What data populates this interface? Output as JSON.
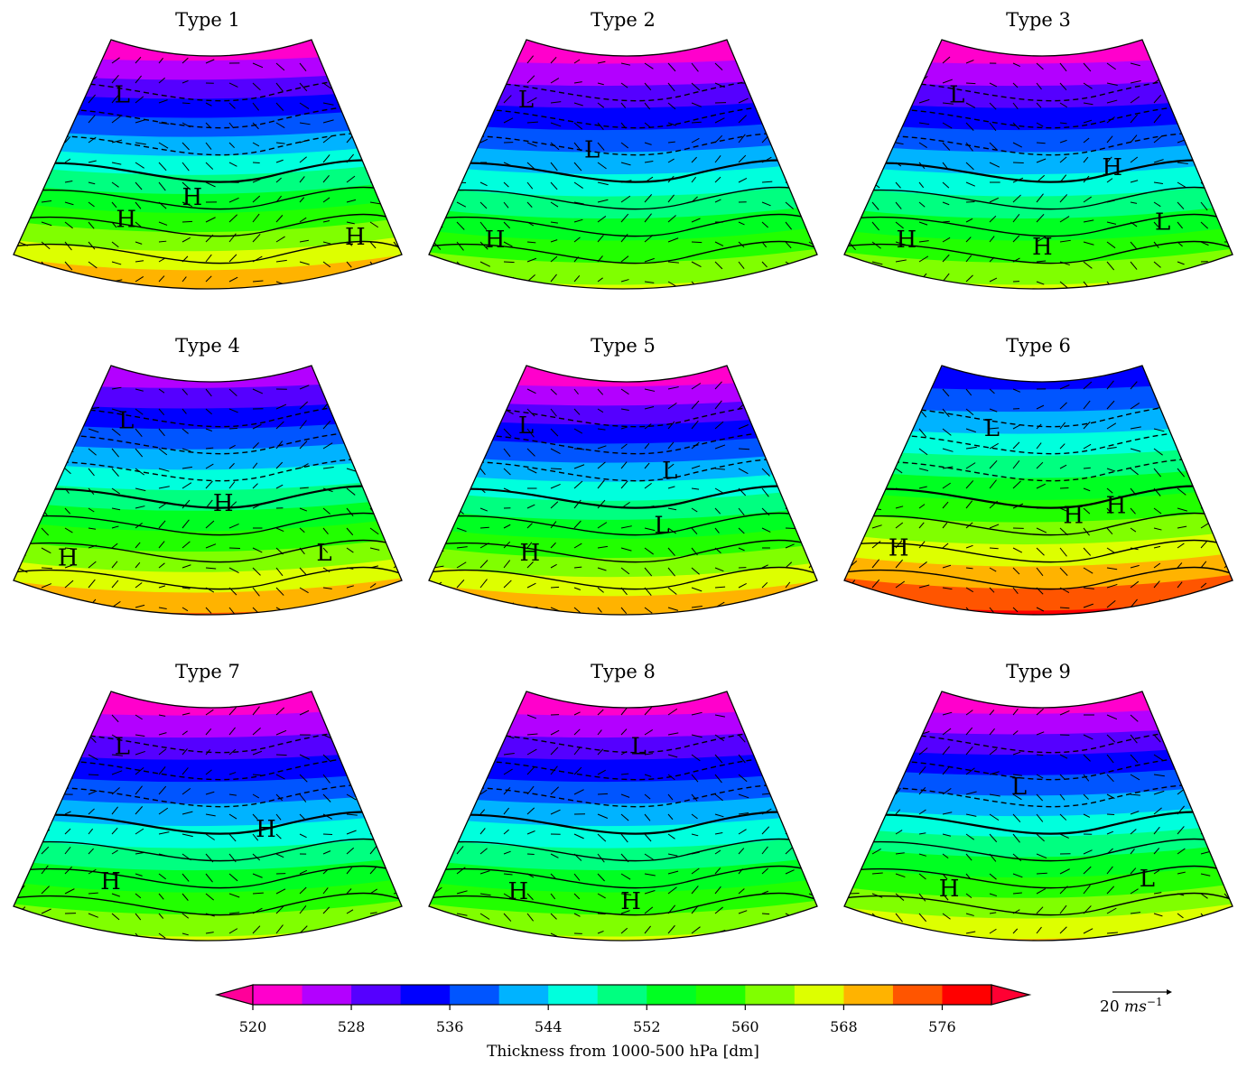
{
  "figure": {
    "colorbar": {
      "label": "Thickness from 1000-500 hPa [dm]",
      "ticks": [
        "520",
        "528",
        "536",
        "544",
        "552",
        "560",
        "568",
        "576"
      ],
      "levels": [
        520,
        524,
        528,
        532,
        536,
        540,
        544,
        548,
        552,
        556,
        560,
        564,
        568,
        572,
        576,
        580
      ],
      "colors": [
        "#ff00cc",
        "#b300ff",
        "#5500ff",
        "#0000ff",
        "#0055ff",
        "#00b3ff",
        "#00ffdd",
        "#00ff80",
        "#00ff22",
        "#22ff00",
        "#80ff00",
        "#ddff00",
        "#ffb300",
        "#ff5500",
        "#ff0000"
      ],
      "extend_low_color": "#ff0099",
      "extend_high_color": "#ff0033"
    },
    "quiver_key": {
      "value": "20",
      "unit": "ms",
      "exponent": "−1"
    }
  },
  "panels": [
    {
      "title": "Type 1"
    },
    {
      "title": "Type 2"
    },
    {
      "title": "Type 3"
    },
    {
      "title": "Type 4"
    },
    {
      "title": "Type 5"
    },
    {
      "title": "Type 6"
    },
    {
      "title": "Type 7"
    },
    {
      "title": "Type 8"
    },
    {
      "title": "Type 9"
    }
  ],
  "chart_data": {
    "type": "heatmap",
    "title": "",
    "description": "3x3 grid of filled-contour maps of Europe/North Atlantic (conic projection) showing 1000-500 hPa thickness with mean sea-level pressure contours (solid/dashed), wind vectors, and H/L pressure-centre labels",
    "colorbar_label": "Thickness from 1000-500 hPa [dm]",
    "colorbar_ticks": [
      520,
      528,
      536,
      544,
      552,
      560,
      568,
      576
    ],
    "colorbar_range": [
      520,
      580
    ],
    "colorbar_step": 4,
    "colorbar_extend": "both",
    "quiver_key": "20 ms^-1",
    "panels": [
      {
        "title": "Type 1",
        "centers": [
          {
            "label": "L",
            "x": 0.28,
            "y": 0.22
          },
          {
            "label": "H",
            "x": 0.29,
            "y": 0.72
          },
          {
            "label": "H",
            "x": 0.46,
            "y": 0.63
          },
          {
            "label": "H",
            "x": 0.88,
            "y": 0.79
          }
        ],
        "thickness_range_est": [
          520,
          576
        ]
      },
      {
        "title": "Type 2",
        "centers": [
          {
            "label": "L",
            "x": 0.25,
            "y": 0.24
          },
          {
            "label": "L",
            "x": 0.42,
            "y": 0.44
          },
          {
            "label": "H",
            "x": 0.17,
            "y": 0.8
          }
        ],
        "thickness_range_est": [
          520,
          568
        ]
      },
      {
        "title": "Type 3",
        "centers": [
          {
            "label": "L",
            "x": 0.29,
            "y": 0.22
          },
          {
            "label": "H",
            "x": 0.69,
            "y": 0.51
          },
          {
            "label": "H",
            "x": 0.16,
            "y": 0.8
          },
          {
            "label": "H",
            "x": 0.51,
            "y": 0.83
          },
          {
            "label": "L",
            "x": 0.82,
            "y": 0.73
          }
        ],
        "thickness_range_est": [
          520,
          568
        ]
      },
      {
        "title": "Type 4",
        "centers": [
          {
            "label": "L",
            "x": 0.29,
            "y": 0.22
          },
          {
            "label": "H",
            "x": 0.54,
            "y": 0.55
          },
          {
            "label": "H",
            "x": 0.14,
            "y": 0.77
          },
          {
            "label": "L",
            "x": 0.8,
            "y": 0.75
          }
        ],
        "thickness_range_est": [
          524,
          576
        ]
      },
      {
        "title": "Type 5",
        "centers": [
          {
            "label": "L",
            "x": 0.25,
            "y": 0.24
          },
          {
            "label": "L",
            "x": 0.62,
            "y": 0.42
          },
          {
            "label": "L",
            "x": 0.6,
            "y": 0.64
          },
          {
            "label": "H",
            "x": 0.26,
            "y": 0.75
          }
        ],
        "thickness_range_est": [
          520,
          576
        ]
      },
      {
        "title": "Type 6",
        "centers": [
          {
            "label": "L",
            "x": 0.38,
            "y": 0.25
          },
          {
            "label": "H",
            "x": 0.59,
            "y": 0.6
          },
          {
            "label": "H",
            "x": 0.7,
            "y": 0.56
          },
          {
            "label": "H",
            "x": 0.14,
            "y": 0.73
          }
        ],
        "thickness_range_est": [
          532,
          580
        ]
      },
      {
        "title": "Type 7",
        "centers": [
          {
            "label": "L",
            "x": 0.28,
            "y": 0.22
          },
          {
            "label": "H",
            "x": 0.65,
            "y": 0.55
          },
          {
            "label": "H",
            "x": 0.25,
            "y": 0.76
          }
        ],
        "thickness_range_est": [
          520,
          568
        ]
      },
      {
        "title": "Type 8",
        "centers": [
          {
            "label": "L",
            "x": 0.54,
            "y": 0.22
          },
          {
            "label": "H",
            "x": 0.23,
            "y": 0.8
          },
          {
            "label": "H",
            "x": 0.52,
            "y": 0.84
          }
        ],
        "thickness_range_est": [
          520,
          568
        ]
      },
      {
        "title": "Type 9",
        "centers": [
          {
            "label": "L",
            "x": 0.45,
            "y": 0.38
          },
          {
            "label": "H",
            "x": 0.27,
            "y": 0.79
          },
          {
            "label": "L",
            "x": 0.78,
            "y": 0.75
          }
        ],
        "thickness_range_est": [
          520,
          572
        ]
      }
    ]
  }
}
